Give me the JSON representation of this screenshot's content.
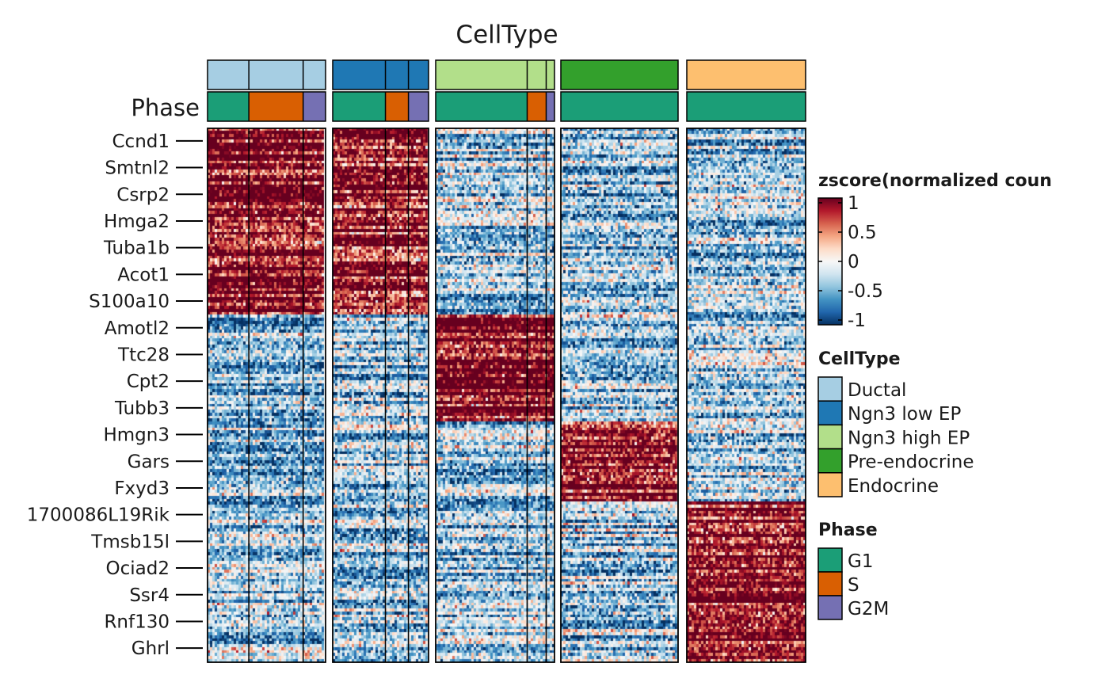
{
  "chart_data": {
    "type": "heatmap",
    "title": "CellType",
    "annotation_row_label": "Phase",
    "genes": [
      "Ccnd1",
      "Smtnl2",
      "Csrp2",
      "Hmga2",
      "Tuba1b",
      "Acot1",
      "S100a10",
      "Amotl2",
      "Ttc28",
      "Cpt2",
      "Tubb3",
      "Hmgn3",
      "Gars",
      "Fxyd3",
      "1700086L19Rik",
      "Tmsb15l",
      "Ociad2",
      "Ssr4",
      "Rnf130",
      "Ghrl"
    ],
    "cell_types": [
      {
        "name": "Ductal",
        "color": "#A6CEE3",
        "phase_fractions": {
          "G1": 0.35,
          "S": 0.46,
          "G2M": 0.19
        }
      },
      {
        "name": "Ngn3 low EP",
        "color": "#1F78B4",
        "phase_fractions": {
          "G1": 0.55,
          "S": 0.24,
          "G2M": 0.21
        }
      },
      {
        "name": "Ngn3 high EP",
        "color": "#B2DF8A",
        "phase_fractions": {
          "G1": 0.77,
          "S": 0.16,
          "G2M": 0.07
        }
      },
      {
        "name": "Pre-endocrine",
        "color": "#33A02C",
        "phase_fractions": {
          "G1": 1.0,
          "S": 0.0,
          "G2M": 0.0
        }
      },
      {
        "name": "Endocrine",
        "color": "#FDBF6F",
        "phase_fractions": {
          "G1": 1.0,
          "S": 0.0,
          "G2M": 0.0
        }
      }
    ],
    "phases": [
      {
        "name": "G1",
        "color": "#1B9E77"
      },
      {
        "name": "S",
        "color": "#D95F02"
      },
      {
        "name": "G2M",
        "color": "#7570B3"
      }
    ],
    "gene_cluster_high_in": [
      "Ductal",
      "Ductal",
      "Ductal",
      "Ductal",
      "Ductal",
      "Ductal",
      "Ductal",
      "Ngn3 high EP",
      "Ngn3 high EP",
      "Ngn3 high EP",
      "Ngn3 high EP",
      "Pre-endocrine",
      "Pre-endocrine",
      "Pre-endocrine",
      "Endocrine",
      "Endocrine",
      "Endocrine",
      "Endocrine",
      "Endocrine",
      "Endocrine"
    ],
    "ductal_cluster_also_high_in": "Ngn3 low EP",
    "color_scale": {
      "title": "zscore(normalized coun",
      "range": [
        -1,
        1
      ],
      "ticks": [
        1,
        0.5,
        0,
        -0.5,
        -1
      ],
      "colors": [
        "#053061",
        "#2166AC",
        "#4393C3",
        "#92C5DE",
        "#D1E5F0",
        "#F7F7F7",
        "#FDDBC7",
        "#F4A582",
        "#D6604D",
        "#B2182B",
        "#67001F"
      ]
    },
    "legend_placement": "right"
  }
}
